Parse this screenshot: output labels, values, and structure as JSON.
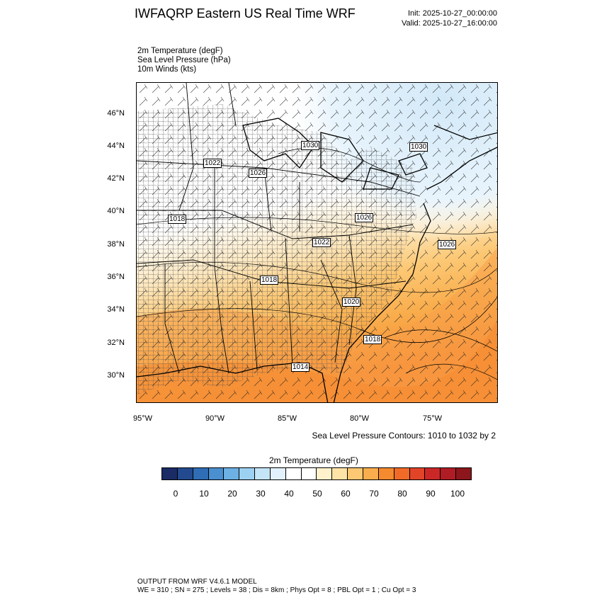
{
  "header": {
    "title": "IWFAQRP Eastern US Real Time WRF",
    "init": "Init: 2025-10-27_00:00:00",
    "valid": "Valid: 2025-10-27_16:00:00"
  },
  "fields": [
    "2m Temperature   (degF)",
    "Sea Level Pressure   (hPa)",
    "10m Winds   (kts)"
  ],
  "map": {
    "lat_labels": [
      "46°N",
      "44°N",
      "42°N",
      "40°N",
      "38°N",
      "36°N",
      "34°N",
      "32°N",
      "30°N"
    ],
    "lon_labels": [
      "95°W",
      "90°W",
      "85°W",
      "80°W",
      "75°W"
    ],
    "isobar_labels": [
      "1030",
      "1030",
      "1022",
      "1026",
      "1018",
      "1026",
      "1022",
      "1026",
      "1018",
      "1020",
      "1018",
      "1014"
    ],
    "contour_note": "Sea Level Pressure Contours: 1010 to 1032 by 2"
  },
  "colorbar": {
    "title": "2m Temperature  (degF)",
    "labels": [
      "0",
      "10",
      "20",
      "30",
      "40",
      "50",
      "60",
      "70",
      "80",
      "90",
      "100"
    ],
    "colors": [
      "#1a2b66",
      "#234a8f",
      "#2f6db5",
      "#4a8fd0",
      "#6cb0e4",
      "#9dd1f2",
      "#c4e4f7",
      "#e2f1fb",
      "#ffffff",
      "#ffffff",
      "#fff1cc",
      "#fde3a5",
      "#fcc874",
      "#f9ad4c",
      "#f68a2f",
      "#f16a28",
      "#e24428",
      "#cc2727",
      "#b01c24",
      "#8c161c"
    ]
  },
  "footer": {
    "line1": "OUTPUT FROM WRF V4.6.1 MODEL",
    "line2": "WE = 310 ; SN = 275 ; Levels = 38 ; Dis = 8km ; Phys Opt = 8 ; PBL Opt = 1 ; Cu Opt = 3"
  }
}
